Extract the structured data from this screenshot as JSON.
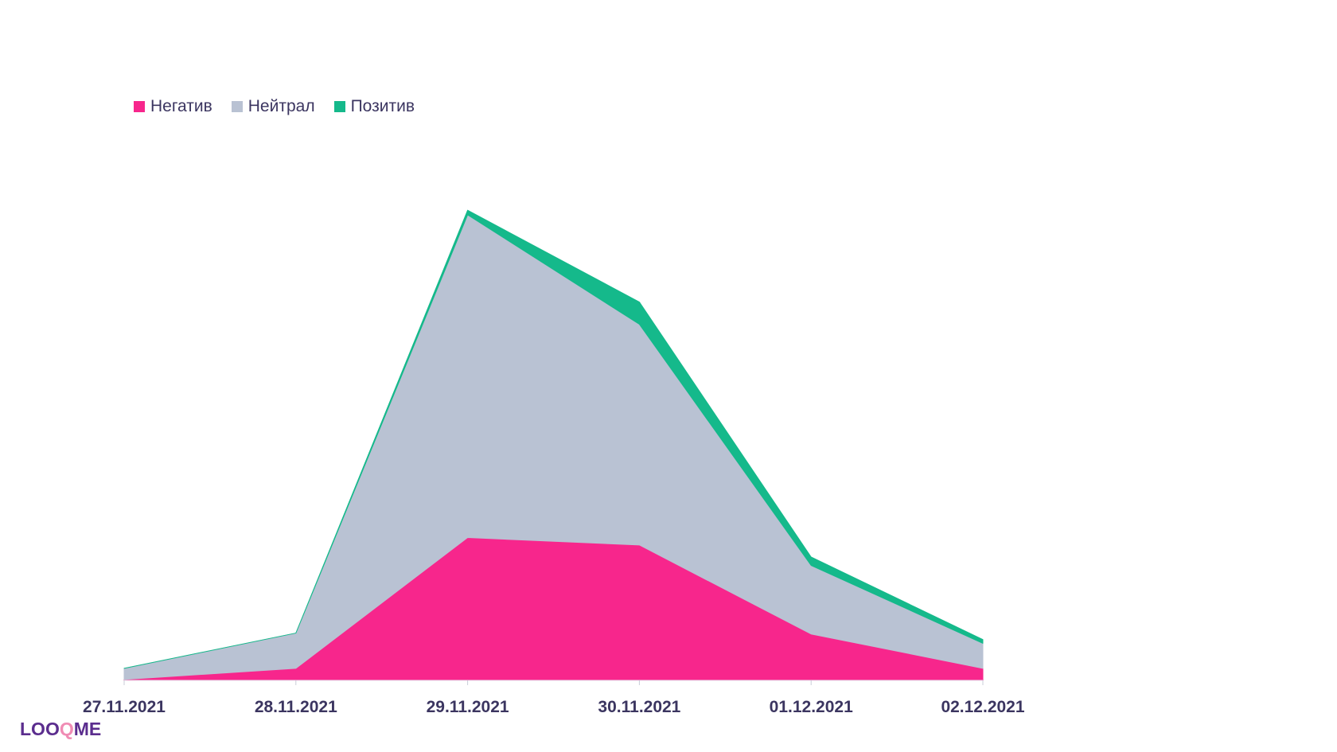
{
  "legend": {
    "items": [
      {
        "label": "Негатив",
        "color": "#f7268c"
      },
      {
        "label": "Нейтрал",
        "color": "#b9c2d3"
      },
      {
        "label": "Позитив",
        "color": "#15b98b"
      }
    ]
  },
  "logo": {
    "prefix": "LOO",
    "q": "Q",
    "suffix": "ME"
  },
  "chart_data": {
    "type": "area",
    "stacked": true,
    "categories": [
      "27.11.2021",
      "28.11.2021",
      "29.11.2021",
      "30.11.2021",
      "01.12.2021",
      "02.12.2021"
    ],
    "series": [
      {
        "name": "Негатив",
        "color": "#f7268c",
        "values": [
          1,
          13,
          154,
          146,
          50,
          13
        ]
      },
      {
        "name": "Нейтрал",
        "color": "#b9c2d3",
        "values": [
          12,
          38,
          348,
          238,
          74,
          27
        ]
      },
      {
        "name": "Позитив",
        "color": "#15b98b",
        "values": [
          0,
          0,
          5,
          24,
          9,
          4
        ]
      }
    ],
    "ylim": [
      0,
      508
    ],
    "grid": false,
    "legend_position": "top-left",
    "title": "",
    "xlabel": "",
    "ylabel": ""
  }
}
